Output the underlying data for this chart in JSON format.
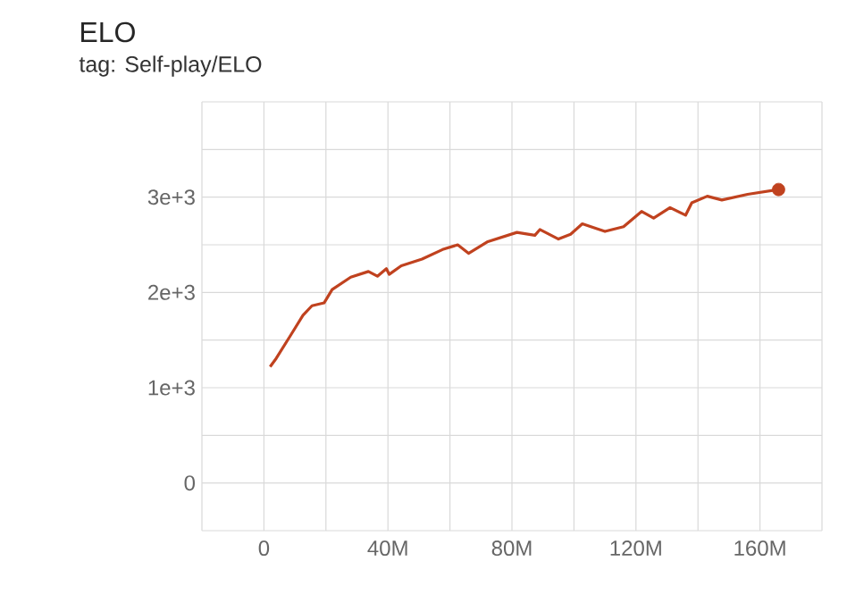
{
  "chart_data": {
    "type": "line",
    "title": "ELO",
    "subtitle": "tag: Self-play/ELO",
    "xlim": [
      -20000000,
      180000000
    ],
    "xticks": [
      {
        "value": -20000000,
        "label": null
      },
      0,
      {
        "value": 20000000,
        "label": null
      },
      {
        "value": 40000000,
        "label": "40M"
      },
      {
        "value": 60000000,
        "label": null
      },
      {
        "value": 80000000,
        "label": "80M"
      },
      {
        "value": 100000000,
        "label": null
      },
      {
        "value": 120000000,
        "label": "120M"
      },
      {
        "value": 140000000,
        "label": null
      },
      {
        "value": 160000000,
        "label": "160M"
      },
      {
        "value": 180000000,
        "label": null
      }
    ],
    "ylim": [
      -500,
      4000
    ],
    "yticks": [
      {
        "value": -500,
        "label": null
      },
      0,
      {
        "value": 500,
        "label": null
      },
      {
        "value": 1000,
        "label": "1e+3"
      },
      {
        "value": 1500,
        "label": null
      },
      {
        "value": 2000,
        "label": "2e+3"
      },
      {
        "value": 2500,
        "label": null
      },
      {
        "value": 3000,
        "label": "3e+3"
      },
      {
        "value": 3500,
        "label": null
      },
      {
        "value": 4000,
        "label": null
      }
    ],
    "grid": true,
    "line_style": "solid",
    "series": [
      {
        "color": "#c0421f",
        "marker": "none",
        "x": [
          2000000,
          4000000,
          8800000,
          12600000,
          15500000,
          19400000,
          22000000,
          28000000,
          33700000,
          36600000,
          39500000,
          40400000,
          44300000,
          51000000,
          57600000,
          62500000,
          66000000,
          72000000,
          81600000,
          87400000,
          89000000,
          95000000,
          98900000,
          102700000,
          110000000,
          116000000,
          121800000,
          125700000,
          131000000,
          136000000,
          138000000,
          143000000,
          147700000,
          156000000,
          166000000
        ],
        "values": [
          1220,
          1310,
          1560,
          1760,
          1860,
          1890,
          2030,
          2160,
          2220,
          2170,
          2250,
          2190,
          2280,
          2350,
          2450,
          2500,
          2410,
          2530,
          2630,
          2600,
          2660,
          2560,
          2610,
          2720,
          2640,
          2690,
          2850,
          2780,
          2890,
          2810,
          2940,
          3010,
          2970,
          3030,
          3080
        ]
      },
      {
        "type": "scatter",
        "color": "#c0421f",
        "marker": "circle",
        "x": [
          166000000
        ],
        "values": [
          3080
        ]
      }
    ]
  }
}
